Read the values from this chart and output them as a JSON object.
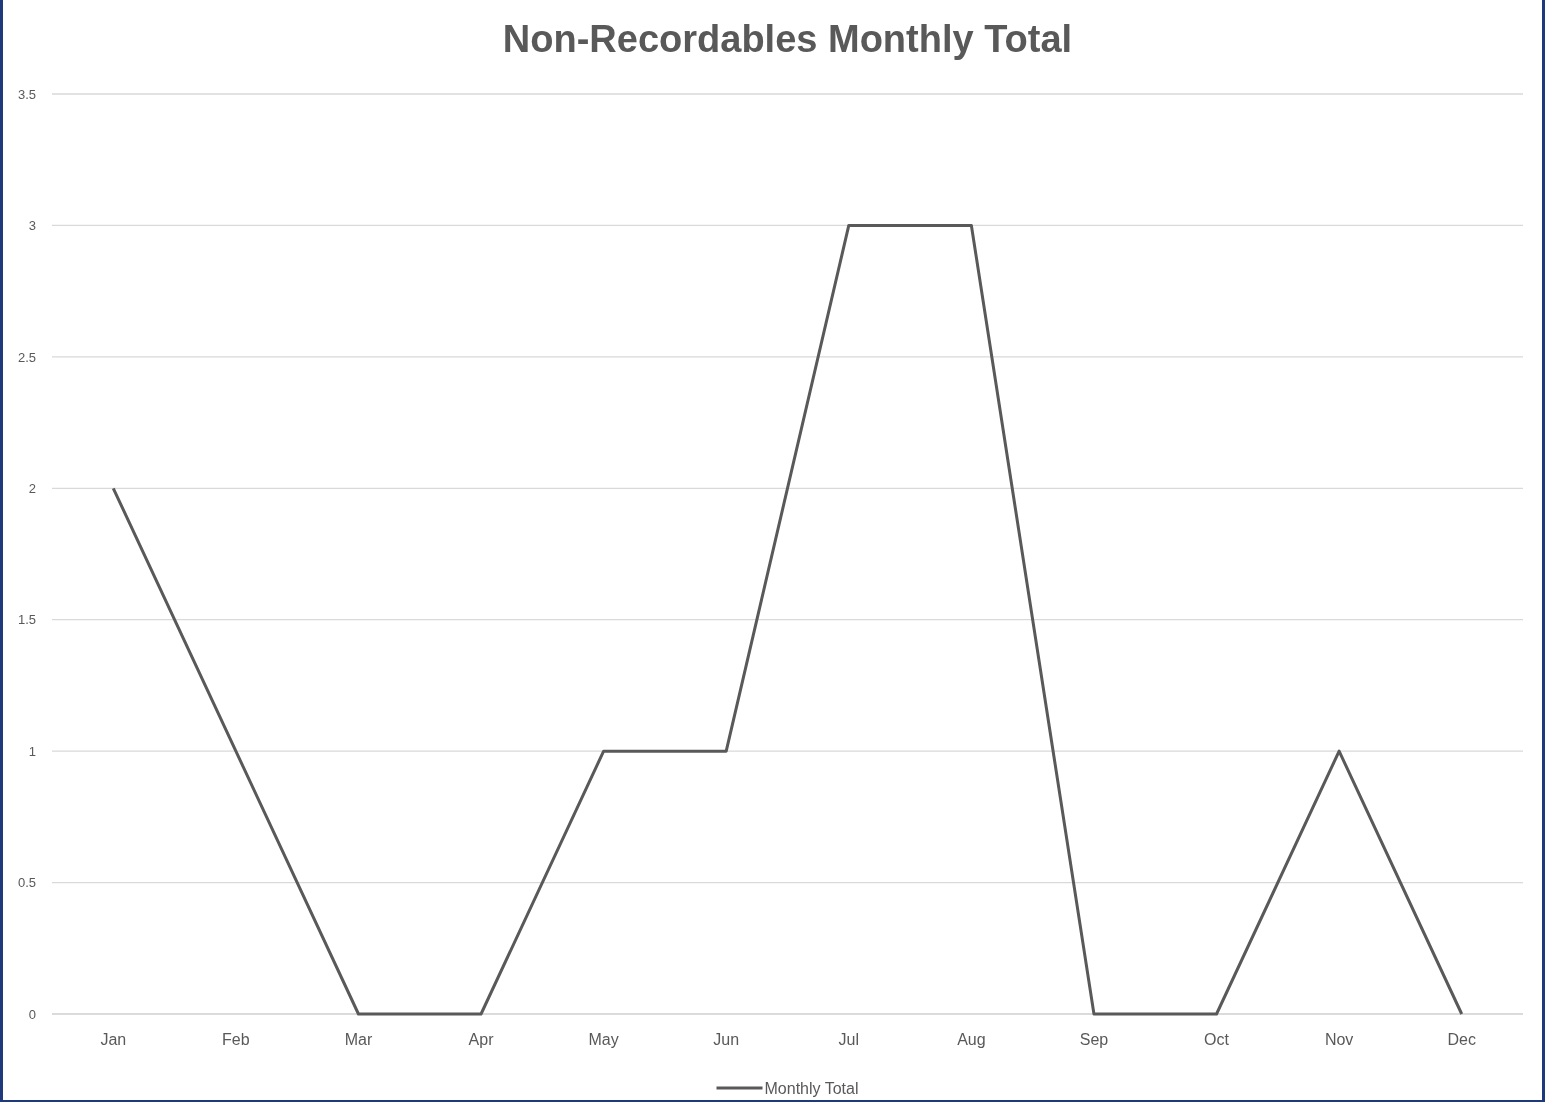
{
  "chart_data": {
    "type": "line",
    "title": "Non-Recordables Monthly Total",
    "categories": [
      "Jan",
      "Feb",
      "Mar",
      "Apr",
      "May",
      "Jun",
      "Jul",
      "Aug",
      "Sep",
      "Oct",
      "Nov",
      "Dec"
    ],
    "series": [
      {
        "name": "Monthly Total",
        "color": "#595959",
        "values": [
          2,
          1,
          0,
          0,
          1,
          1,
          3,
          3,
          0,
          0,
          1,
          0
        ]
      }
    ],
    "ylim": [
      0,
      3.5
    ],
    "yticks": [
      0,
      0.5,
      1,
      1.5,
      2,
      2.5,
      3,
      3.5
    ],
    "grid": "y",
    "legend": "bottom",
    "marker": "none",
    "line_style": "solid"
  }
}
